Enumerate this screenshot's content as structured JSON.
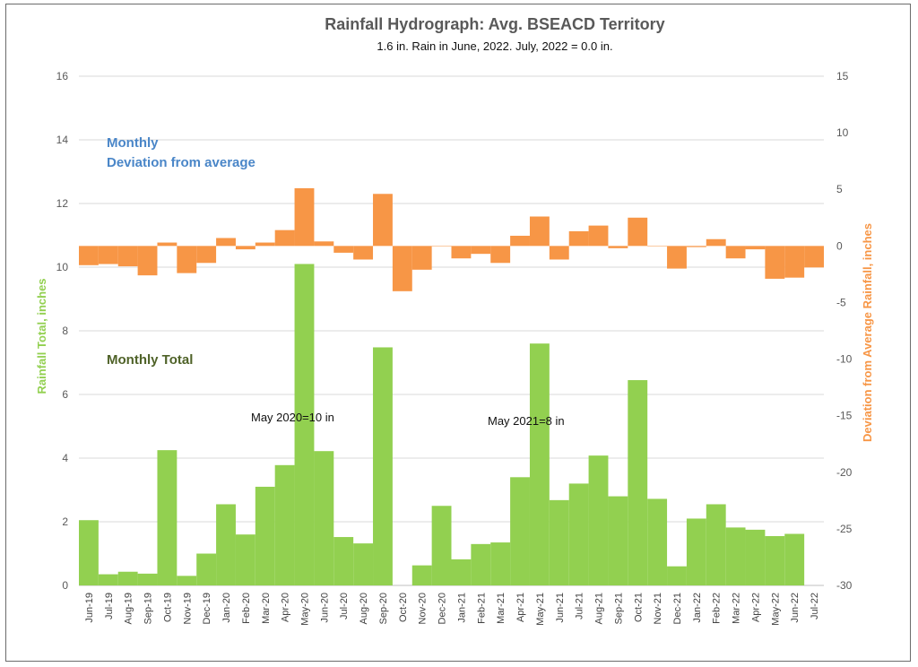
{
  "chart_data": {
    "type": "bar",
    "title": "Rainfall Hydrograph: Avg. BSEACD Territory",
    "subtitle": "1.6 in. Rain in June, 2022. July, 2022 = 0.0 in.",
    "ylabel": "Rainfall Total, inches",
    "y2label": "Deviation from Average Rainfall, inches",
    "ylim": [
      0,
      16
    ],
    "y2lim": [
      -30,
      15
    ],
    "yticks": [
      "0",
      "2",
      "4",
      "6",
      "8",
      "10",
      "12",
      "14",
      "16"
    ],
    "y2ticks": [
      "-30",
      "-25",
      "-20",
      "-15",
      "-10",
      "-5",
      "0",
      "5",
      "10",
      "15"
    ],
    "grid": true,
    "categories": [
      "Jun-19",
      "Jul-19",
      "Aug-19",
      "Sep-19",
      "Oct-19",
      "Nov-19",
      "Dec-19",
      "Jan-20",
      "Feb-20",
      "Mar-20",
      "Apr-20",
      "May-20",
      "Jun-20",
      "Jul-20",
      "Aug-20",
      "Sep-20",
      "Oct-20",
      "Nov-20",
      "Dec-20",
      "Jan-21",
      "Feb-21",
      "Mar-21",
      "Apr-21",
      "May-21",
      "Jun-21",
      "Jul-21",
      "Aug-21",
      "Sep-21",
      "Oct-21",
      "Nov-21",
      "Dec-21",
      "Jan-22",
      "Feb-22",
      "Mar-22",
      "Apr-22",
      "May-22",
      "Jun-22",
      "Jul-22"
    ],
    "series": [
      {
        "name": "Monthly Total",
        "axis": "left",
        "color": "#92d050",
        "values": [
          2.05,
          0.35,
          0.43,
          0.37,
          4.25,
          0.3,
          1.0,
          2.55,
          1.6,
          3.1,
          3.78,
          10.1,
          4.22,
          1.52,
          1.32,
          7.48,
          0.0,
          0.63,
          2.5,
          0.82,
          1.3,
          1.35,
          3.4,
          7.6,
          2.68,
          3.2,
          4.08,
          2.8,
          6.45,
          2.72,
          0.6,
          2.1,
          2.55,
          1.82,
          1.75,
          1.55,
          1.62,
          0.0
        ]
      },
      {
        "name": "Monthly Deviation from average",
        "axis": "right",
        "color": "#f79646",
        "values": [
          -1.7,
          -1.6,
          -1.8,
          -2.6,
          0.3,
          -2.4,
          -1.5,
          0.7,
          -0.3,
          0.3,
          1.4,
          5.1,
          0.4,
          -0.6,
          -1.2,
          4.6,
          -4.0,
          -2.1,
          0.0,
          -1.1,
          -0.7,
          -1.5,
          0.9,
          2.6,
          -1.2,
          1.3,
          1.8,
          -0.2,
          2.5,
          0.0,
          -2.0,
          -0.1,
          0.6,
          -1.1,
          -0.3,
          -2.9,
          -2.8,
          -1.9
        ]
      }
    ],
    "legend": [
      {
        "text": "Monthly",
        "color": "#4a86c8"
      },
      {
        "text": "Deviation from average",
        "color": "#4a86c8"
      },
      {
        "text": "Monthly Total",
        "color": "#4f6228"
      }
    ],
    "annotations": [
      "May 2020=10 in",
      "May 2021=8 in"
    ]
  }
}
